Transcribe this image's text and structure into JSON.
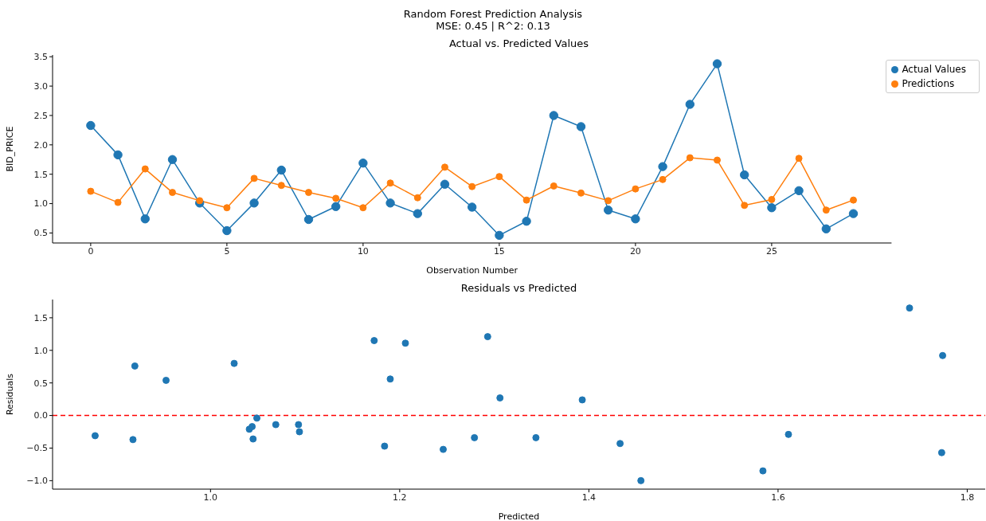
{
  "chart_data": [
    {
      "type": "line",
      "title": "Actual vs. Predicted Values",
      "xlabel": "Observation Number",
      "ylabel": "BID_PRICE",
      "annotations": [
        "Random Forest Prediction Analysis",
        "MSE: 0.45 | R^2: 0.13"
      ],
      "x": [
        0,
        1,
        2,
        3,
        4,
        5,
        6,
        7,
        8,
        9,
        10,
        11,
        12,
        13,
        14,
        15,
        16,
        17,
        18,
        19,
        20,
        21,
        22,
        23,
        24,
        25,
        26,
        27,
        28
      ],
      "series": [
        {
          "name": "Actual Values",
          "color": "#1f77b4",
          "values": [
            2.33,
            1.83,
            0.74,
            1.75,
            1.01,
            0.54,
            1.01,
            1.57,
            0.73,
            0.95,
            1.69,
            1.01,
            0.83,
            1.33,
            0.94,
            0.46,
            0.7,
            2.5,
            2.31,
            0.89,
            0.74,
            1.63,
            2.69,
            3.38,
            1.49,
            0.93,
            1.22,
            0.57,
            0.83
          ]
        },
        {
          "name": "Predictions",
          "color": "#ff7f0e",
          "values": [
            1.21,
            1.02,
            1.59,
            1.19,
            1.05,
            0.93,
            1.43,
            1.31,
            1.19,
            1.09,
            0.93,
            1.35,
            1.1,
            1.62,
            1.29,
            1.46,
            1.06,
            1.3,
            1.18,
            1.05,
            1.25,
            1.41,
            1.78,
            1.74,
            0.97,
            1.07,
            1.77,
            0.89,
            1.06
          ]
        }
      ],
      "xlim": [
        -1.4,
        29.4
      ],
      "xticks": [
        0,
        5,
        10,
        15,
        20,
        25
      ],
      "ylim": [
        0.33,
        3.53
      ],
      "yticks": [
        {
          "value": 0.5,
          "label": "0.5"
        },
        {
          "value": 1,
          "label": "1.0"
        },
        {
          "value": 1.5,
          "label": "1.5"
        },
        {
          "value": 2,
          "label": "2.0"
        },
        {
          "value": 2.5,
          "label": "2.5"
        },
        {
          "value": 3,
          "label": "3.0"
        },
        {
          "value": 3.5,
          "label": "3.5"
        }
      ],
      "legend": "top right",
      "marker": "circle",
      "line_style": "solid"
    },
    {
      "type": "scatter",
      "title": "Residuals vs Predicted",
      "xlabel": "Predicted",
      "ylabel": "Residuals",
      "series": [
        {
          "color": "#1f77b4",
          "x": [
            0.878,
            0.918,
            0.92,
            0.953,
            1.025,
            1.041,
            1.044,
            1.045,
            1.049,
            1.069,
            1.093,
            1.094,
            1.173,
            1.184,
            1.19,
            1.206,
            1.246,
            1.279,
            1.293,
            1.306,
            1.344,
            1.393,
            1.433,
            1.455,
            1.584,
            1.611,
            1.739,
            1.773,
            1.774
          ],
          "values": [
            -0.31,
            -0.37,
            0.76,
            0.54,
            0.8,
            -0.21,
            -0.17,
            -0.36,
            -0.04,
            -0.14,
            -0.14,
            -0.25,
            1.15,
            -0.47,
            0.56,
            1.11,
            -0.52,
            -0.34,
            1.21,
            0.27,
            -0.34,
            0.24,
            -0.43,
            -1.0,
            -0.85,
            -0.29,
            1.65,
            -0.57,
            0.92
          ]
        }
      ],
      "xlim": [
        0.833,
        1.819
      ],
      "xticks": [
        {
          "value": 1,
          "label": "1.0"
        },
        {
          "value": 1.2,
          "label": "1.2"
        },
        {
          "value": 1.4,
          "label": "1.4"
        },
        {
          "value": 1.6,
          "label": "1.6"
        },
        {
          "value": 1.8,
          "label": "1.8"
        }
      ],
      "ylim": [
        -1.13,
        1.78
      ],
      "yticks": [
        {
          "value": -1,
          "label": "−1.0"
        },
        {
          "value": -0.5,
          "label": "−0.5"
        },
        {
          "value": 0,
          "label": "0.0"
        },
        {
          "value": 0.5,
          "label": "0.5"
        },
        {
          "value": 1,
          "label": "1.0"
        },
        {
          "value": 1.5,
          "label": "1.5"
        }
      ],
      "marker": "circle",
      "ref_lines": [
        {
          "axis": "y",
          "value": 0,
          "color": "#ff0000",
          "line_style": "dashed"
        }
      ]
    }
  ]
}
